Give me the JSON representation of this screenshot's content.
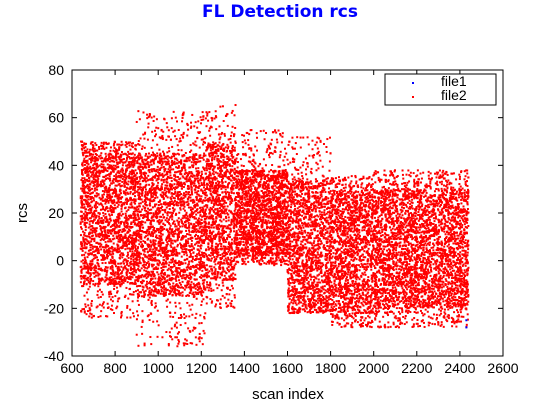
{
  "chart_data": {
    "type": "scatter",
    "title": "FL Detection rcs",
    "xlabel": "scan index",
    "ylabel": "rcs",
    "xlim": [
      600,
      2600
    ],
    "ylim": [
      -40,
      80
    ],
    "xticks": [
      "600",
      "800",
      "1000",
      "1200",
      "1400",
      "1600",
      "1800",
      "2000",
      "2200",
      "2400",
      "2600"
    ],
    "yticks": [
      "-40",
      "-20",
      "0",
      "20",
      "40",
      "60",
      "80"
    ],
    "grid": false,
    "legend_position": "top-right",
    "series": [
      {
        "name": "file1",
        "color": "#0000ff",
        "marker": "dot"
      },
      {
        "name": "file2",
        "color": "#ff0000",
        "marker": "dot"
      }
    ],
    "x_range": [
      640,
      2440
    ],
    "density_bands": [
      {
        "x": [
          640,
          900
        ],
        "y_body": [
          -10,
          45
        ],
        "y_outliers": [
          -24,
          50
        ]
      },
      {
        "x": [
          900,
          1220
        ],
        "y_body": [
          -15,
          45
        ],
        "y_outliers": [
          -36,
          63
        ]
      },
      {
        "x": [
          1220,
          1360
        ],
        "y_body": [
          -8,
          50
        ],
        "y_outliers": [
          -20,
          66
        ]
      },
      {
        "x": [
          1360,
          1600
        ],
        "y_body": [
          2,
          38
        ],
        "y_outliers": [
          -2,
          55
        ]
      },
      {
        "x": [
          1600,
          1800
        ],
        "y_body": [
          -20,
          34
        ],
        "y_outliers": [
          -22,
          52
        ]
      },
      {
        "x": [
          1800,
          2000
        ],
        "y_body": [
          -22,
          30
        ],
        "y_outliers": [
          -28,
          36
        ]
      },
      {
        "x": [
          2000,
          2440
        ],
        "y_body": [
          -20,
          30
        ],
        "y_outliers": [
          -28,
          38
        ]
      }
    ],
    "visible_file1_points": [
      [
        2430,
        -28
      ],
      [
        2430,
        -25
      ]
    ]
  }
}
